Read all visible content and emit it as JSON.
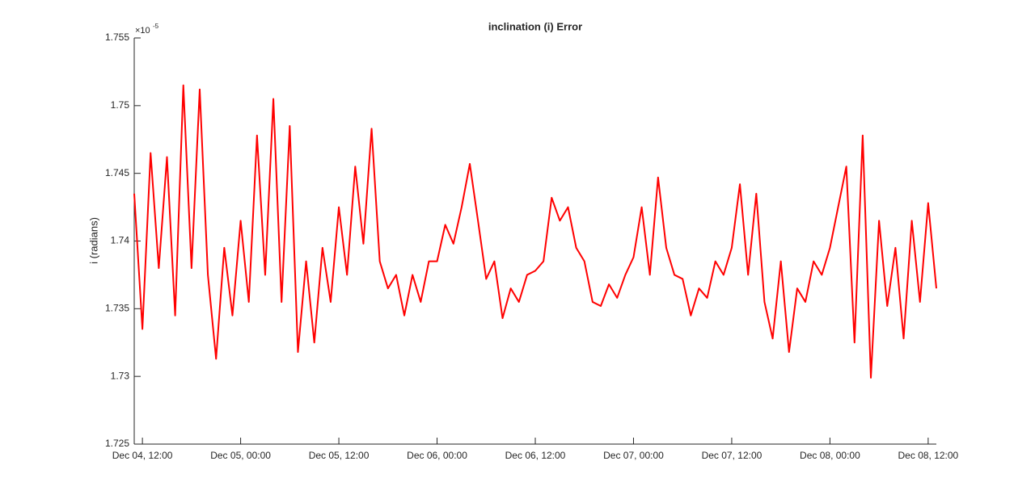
{
  "chart_data": {
    "type": "line",
    "title": "inclination (i) Error",
    "ylabel": "i (radians)",
    "y_multiplier": "×10",
    "y_multiplier_exponent": "-5",
    "x": [
      "Dec 04, 11:00",
      "Dec 04, 12:00",
      "Dec 04, 13:00",
      "Dec 04, 14:00",
      "Dec 04, 15:00",
      "Dec 04, 16:00",
      "Dec 04, 17:00",
      "Dec 04, 18:00",
      "Dec 04, 19:00",
      "Dec 04, 20:00",
      "Dec 04, 21:00",
      "Dec 04, 22:00",
      "Dec 04, 23:00",
      "Dec 05, 00:00",
      "Dec 05, 01:00",
      "Dec 05, 02:00",
      "Dec 05, 03:00",
      "Dec 05, 04:00",
      "Dec 05, 05:00",
      "Dec 05, 06:00",
      "Dec 05, 07:00",
      "Dec 05, 08:00",
      "Dec 05, 09:00",
      "Dec 05, 10:00",
      "Dec 05, 11:00",
      "Dec 05, 12:00",
      "Dec 05, 13:00",
      "Dec 05, 14:00",
      "Dec 05, 15:00",
      "Dec 05, 16:00",
      "Dec 05, 17:00",
      "Dec 05, 18:00",
      "Dec 05, 19:00",
      "Dec 05, 20:00",
      "Dec 05, 21:00",
      "Dec 05, 22:00",
      "Dec 05, 23:00",
      "Dec 06, 00:00",
      "Dec 06, 01:00",
      "Dec 06, 02:00",
      "Dec 06, 03:00",
      "Dec 06, 04:00",
      "Dec 06, 05:00",
      "Dec 06, 06:00",
      "Dec 06, 07:00",
      "Dec 06, 08:00",
      "Dec 06, 09:00",
      "Dec 06, 10:00",
      "Dec 06, 11:00",
      "Dec 06, 12:00",
      "Dec 06, 13:00",
      "Dec 06, 14:00",
      "Dec 06, 15:00",
      "Dec 06, 16:00",
      "Dec 06, 17:00",
      "Dec 06, 18:00",
      "Dec 06, 19:00",
      "Dec 06, 20:00",
      "Dec 06, 21:00",
      "Dec 06, 22:00",
      "Dec 06, 23:00",
      "Dec 07, 00:00",
      "Dec 07, 01:00",
      "Dec 07, 02:00",
      "Dec 07, 03:00",
      "Dec 07, 04:00",
      "Dec 07, 05:00",
      "Dec 07, 06:00",
      "Dec 07, 07:00",
      "Dec 07, 08:00",
      "Dec 07, 09:00",
      "Dec 07, 10:00",
      "Dec 07, 11:00",
      "Dec 07, 12:00",
      "Dec 07, 13:00",
      "Dec 07, 14:00",
      "Dec 07, 15:00",
      "Dec 07, 16:00",
      "Dec 07, 17:00",
      "Dec 07, 18:00",
      "Dec 07, 19:00",
      "Dec 07, 20:00",
      "Dec 07, 21:00",
      "Dec 07, 22:00",
      "Dec 07, 23:00",
      "Dec 08, 00:00",
      "Dec 08, 01:00",
      "Dec 08, 02:00",
      "Dec 08, 03:00",
      "Dec 08, 04:00",
      "Dec 08, 05:00",
      "Dec 08, 06:00",
      "Dec 08, 07:00",
      "Dec 08, 08:00",
      "Dec 08, 09:00",
      "Dec 08, 10:00",
      "Dec 08, 11:00",
      "Dec 08, 12:00",
      "Dec 08, 13:00"
    ],
    "series": [
      {
        "color": "#ff0000",
        "values": [
          1.7435,
          1.7335,
          1.7465,
          1.738,
          1.7462,
          1.7345,
          1.7515,
          1.738,
          1.7512,
          1.7375,
          1.7313,
          1.7395,
          1.7345,
          1.7415,
          1.7355,
          1.7478,
          1.7375,
          1.7505,
          1.7355,
          1.7485,
          1.7318,
          1.7385,
          1.7325,
          1.7395,
          1.7355,
          1.7425,
          1.7375,
          1.7455,
          1.7398,
          1.7483,
          1.7385,
          1.7365,
          1.7375,
          1.7345,
          1.7375,
          1.7355,
          1.7385,
          1.7385,
          1.7412,
          1.7398,
          1.7425,
          1.7457,
          1.7415,
          1.7372,
          1.7385,
          1.7343,
          1.7365,
          1.7355,
          1.7375,
          1.7378,
          1.7385,
          1.7432,
          1.7415,
          1.7425,
          1.7395,
          1.7385,
          1.7355,
          1.7352,
          1.7368,
          1.7358,
          1.7375,
          1.7388,
          1.7425,
          1.7375,
          1.7447,
          1.7395,
          1.7375,
          1.7372,
          1.7345,
          1.7365,
          1.7358,
          1.7385,
          1.7375,
          1.7395,
          1.7442,
          1.7375,
          1.7435,
          1.7355,
          1.7328,
          1.7385,
          1.7318,
          1.7365,
          1.7355,
          1.7385,
          1.7375,
          1.7395,
          1.7425,
          1.7455,
          1.7325,
          1.7478,
          1.7299,
          1.7415,
          1.7352,
          1.7395,
          1.7328,
          1.7415,
          1.7355,
          1.7428,
          1.7365
        ]
      }
    ],
    "xlim": [
      "Dec 04, 11:00",
      "Dec 08, 13:00"
    ],
    "xticks": [
      "Dec 04, 12:00",
      "Dec 05, 00:00",
      "Dec 05, 12:00",
      "Dec 06, 00:00",
      "Dec 06, 12:00",
      "Dec 07, 00:00",
      "Dec 07, 12:00",
      "Dec 08, 00:00",
      "Dec 08, 12:00"
    ],
    "ylim": [
      1.725,
      1.755
    ],
    "yticks": [
      1.725,
      1.73,
      1.735,
      1.74,
      1.745,
      1.75,
      1.755
    ],
    "grid": false
  }
}
